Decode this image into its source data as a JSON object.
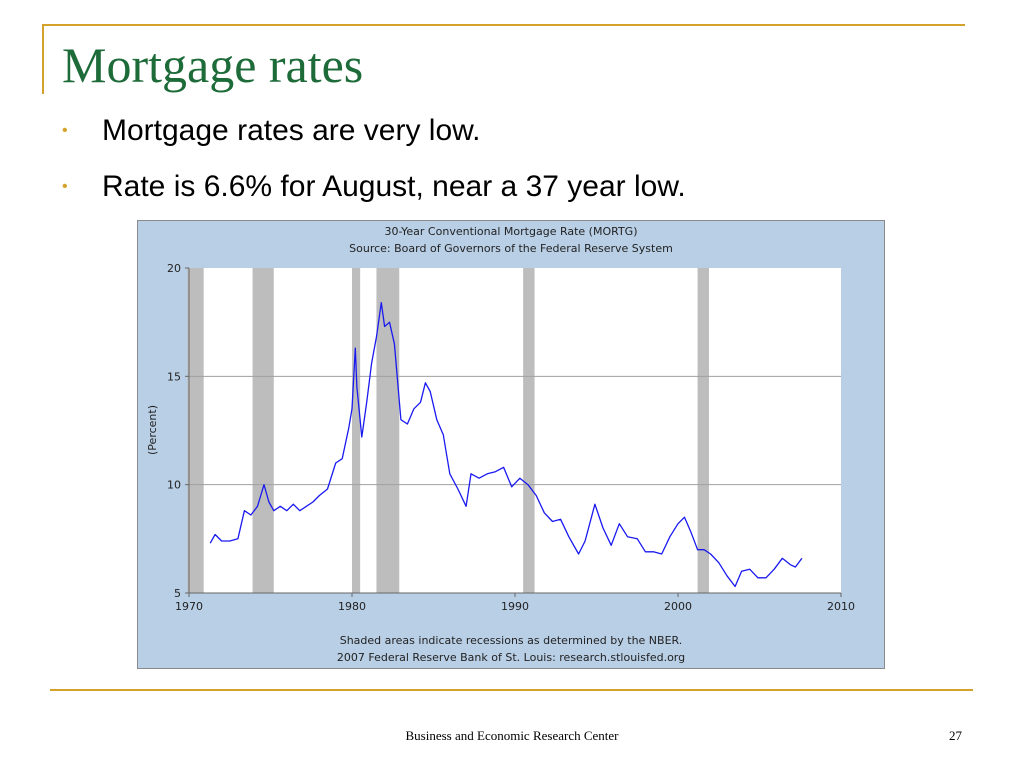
{
  "slide": {
    "title": "Mortgage rates",
    "bullets": [
      "Mortgage rates are very low.",
      "Rate is 6.6% for August, near a 37 year low."
    ],
    "bullet_glyph": "•",
    "footer": "Business and Economic Research Center",
    "page_number": "27"
  },
  "colors": {
    "title": "#1e6b3a",
    "accent": "#d4a12a",
    "chart_panel": "#b9cfe6",
    "line": "#1a1af0",
    "recession": "#bdbdbd"
  },
  "chart_data": {
    "type": "line",
    "title": "30-Year Conventional Mortgage Rate (MORTG)",
    "subtitle": "Source: Board of Governors of the Federal Reserve System",
    "ylabel": "(Percent)",
    "xlabel": "",
    "xlim": [
      1970,
      2010
    ],
    "ylim": [
      5,
      20
    ],
    "xticks": [
      "1970",
      "1980",
      "1990",
      "2000",
      "2010"
    ],
    "yticks": [
      "5",
      "10",
      "15",
      "20"
    ],
    "grid": true,
    "note_line1": "Shaded areas indicate recessions as determined by the NBER.",
    "note_line2": "2007 Federal Reserve Bank of St. Louis: research.stlouisfed.org",
    "recessions": [
      [
        1969.9,
        1970.9
      ],
      [
        1973.9,
        1975.2
      ],
      [
        1980.0,
        1980.5
      ],
      [
        1981.5,
        1982.9
      ],
      [
        1990.5,
        1991.2
      ],
      [
        2001.2,
        2001.9
      ]
    ],
    "series": [
      {
        "x": [
          1971.3,
          1971.6,
          1972.0,
          1972.5,
          1973.0,
          1973.4,
          1973.8,
          1974.2,
          1974.6,
          1974.9,
          1975.2,
          1975.6,
          1976.0,
          1976.4,
          1976.8,
          1977.2,
          1977.6,
          1978.0,
          1978.5,
          1979.0,
          1979.4,
          1979.8,
          1980.0,
          1980.2,
          1980.3,
          1980.6,
          1980.9,
          1981.2,
          1981.5,
          1981.8,
          1982.0,
          1982.3,
          1982.6,
          1983.0,
          1983.4,
          1983.8,
          1984.2,
          1984.5,
          1984.8,
          1985.2,
          1985.6,
          1986.0,
          1986.5,
          1987.0,
          1987.3,
          1987.8,
          1988.3,
          1988.8,
          1989.3,
          1989.8,
          1990.3,
          1990.8,
          1991.3,
          1991.8,
          1992.3,
          1992.8,
          1993.3,
          1993.9,
          1994.3,
          1994.9,
          1995.4,
          1995.9,
          1996.4,
          1996.9,
          1997.5,
          1998.0,
          1998.5,
          1999.0,
          1999.5,
          2000.0,
          2000.4,
          2000.8,
          2001.2,
          2001.6,
          2002.0,
          2002.5,
          2003.0,
          2003.5,
          2003.9,
          2004.4,
          2004.9,
          2005.4,
          2005.9,
          2006.4,
          2006.9,
          2007.2,
          2007.6
        ],
        "y": [
          7.3,
          7.7,
          7.4,
          7.4,
          7.5,
          8.8,
          8.6,
          9.0,
          10.0,
          9.2,
          8.8,
          9.0,
          8.8,
          9.1,
          8.8,
          9.0,
          9.2,
          9.5,
          9.8,
          11.0,
          11.2,
          12.6,
          13.5,
          16.3,
          14.5,
          12.2,
          13.8,
          15.6,
          16.8,
          18.4,
          17.3,
          17.5,
          16.5,
          13.0,
          12.8,
          13.5,
          13.8,
          14.7,
          14.3,
          13.0,
          12.3,
          10.5,
          9.8,
          9.0,
          10.5,
          10.3,
          10.5,
          10.6,
          10.8,
          9.9,
          10.3,
          10.0,
          9.5,
          8.7,
          8.3,
          8.4,
          7.6,
          6.8,
          7.4,
          9.1,
          8.0,
          7.2,
          8.2,
          7.6,
          7.5,
          6.9,
          6.9,
          6.8,
          7.6,
          8.2,
          8.5,
          7.8,
          7.0,
          7.0,
          6.8,
          6.4,
          5.8,
          5.3,
          6.0,
          6.1,
          5.7,
          5.7,
          6.1,
          6.6,
          6.3,
          6.2,
          6.6
        ]
      }
    ]
  }
}
